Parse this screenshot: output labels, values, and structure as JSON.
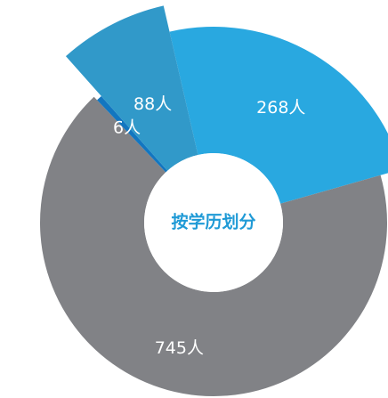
{
  "chart_data": {
    "type": "donut",
    "title": "按学历划分",
    "categories": [
      "268人",
      "745人",
      "6人",
      "88人"
    ],
    "values": [
      268,
      745,
      6,
      88
    ],
    "value_labels": [
      "268人",
      "745人",
      "6人",
      "88人"
    ],
    "colors": [
      "#29a8e0",
      "#818286",
      "#1276c0",
      "#3199c9"
    ]
  }
}
